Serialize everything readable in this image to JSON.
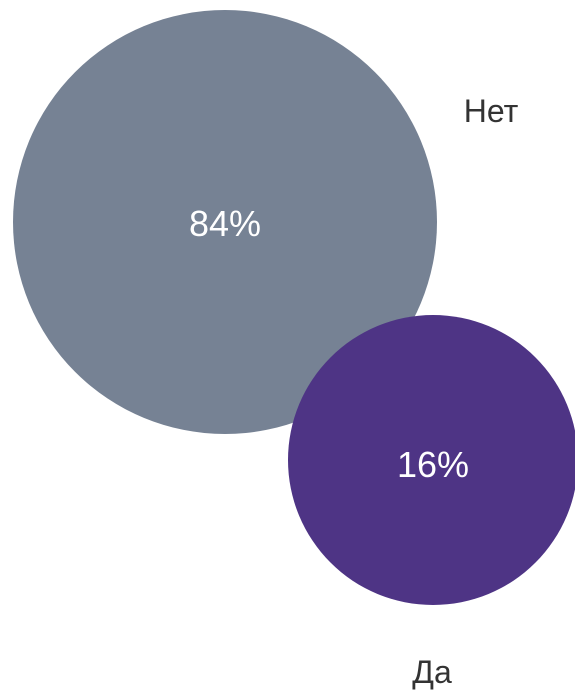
{
  "chart_data": {
    "type": "bubble",
    "categories": [
      "Нет",
      "Да"
    ],
    "values": [
      84,
      16
    ],
    "value_unit": "%",
    "labels": [
      "84%",
      "16%"
    ],
    "colors": [
      "#768294",
      "#4e3485"
    ],
    "legend": "none",
    "grid": false
  }
}
